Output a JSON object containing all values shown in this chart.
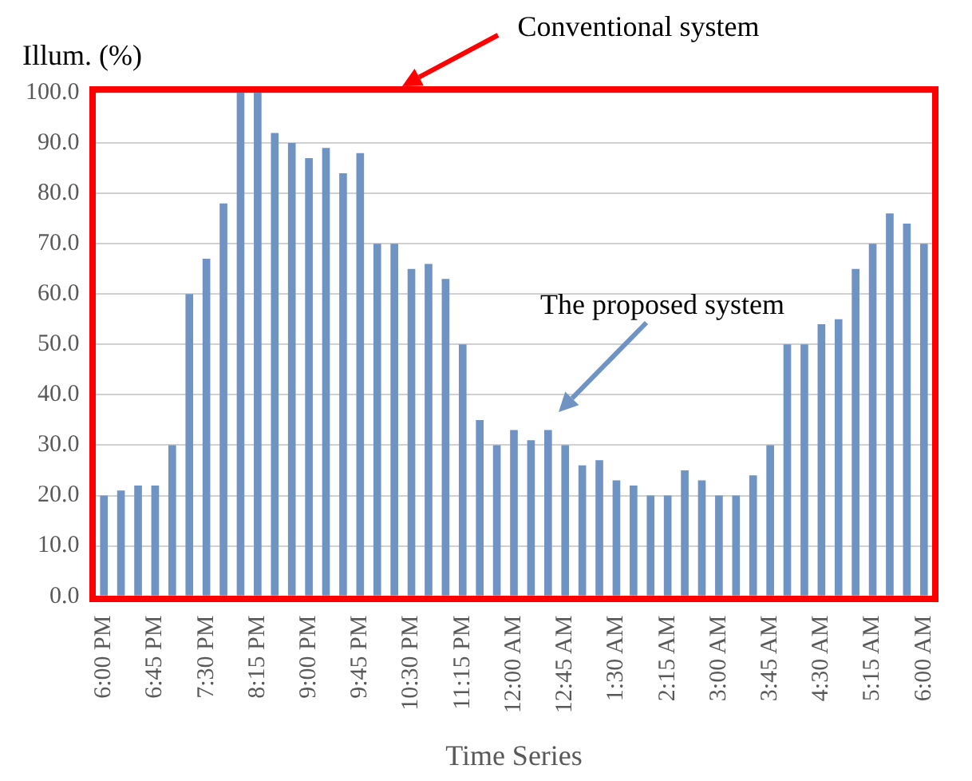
{
  "chart_data": {
    "type": "bar",
    "ylabel": "Illum. (%)",
    "xlabel": "Time Series",
    "categories": [
      "6:00 PM",
      null,
      null,
      "6:45 PM",
      null,
      null,
      "7:30 PM",
      null,
      null,
      "8:15 PM",
      null,
      null,
      "9:00 PM",
      null,
      null,
      "9:45 PM",
      null,
      null,
      "10:30 PM",
      null,
      null,
      "11:15 PM",
      null,
      null,
      "12:00 AM",
      null,
      null,
      "12:45 AM",
      null,
      null,
      "1:30 AM",
      null,
      null,
      "2:15 AM",
      null,
      null,
      "3:00 AM",
      null,
      null,
      "3:45 AM",
      null,
      null,
      "4:30 AM",
      null,
      null,
      "5:15 AM",
      null,
      null,
      "6:00 AM"
    ],
    "values": [
      20,
      21,
      22,
      22,
      30,
      60,
      67,
      78,
      100,
      100,
      92,
      90,
      87,
      89,
      84,
      88,
      70,
      70,
      65,
      66,
      63,
      50,
      35,
      30,
      33,
      31,
      33,
      30,
      26,
      27,
      23,
      22,
      20,
      20,
      25,
      23,
      20,
      20,
      24,
      30,
      50,
      50,
      54,
      55,
      65,
      70,
      76,
      74,
      70
    ],
    "color": "#6f93c2",
    "ylim": [
      0,
      100
    ],
    "yticks": [
      {
        "value": 0,
        "label": "0.0"
      },
      {
        "value": 10,
        "label": "10.0"
      },
      {
        "value": 20,
        "label": "20.0"
      },
      {
        "value": 30,
        "label": "30.0"
      },
      {
        "value": 40,
        "label": "40.0"
      },
      {
        "value": 50,
        "label": "50.0"
      },
      {
        "value": 60,
        "label": "60.0"
      },
      {
        "value": 70,
        "label": "70.0"
      },
      {
        "value": 80,
        "label": "80.0"
      },
      {
        "value": 90,
        "label": "90.0"
      },
      {
        "value": 100,
        "label": "100.0"
      }
    ],
    "grid": "y",
    "legend": false,
    "annotations": [
      "Conventional system",
      "The proposed system"
    ]
  }
}
